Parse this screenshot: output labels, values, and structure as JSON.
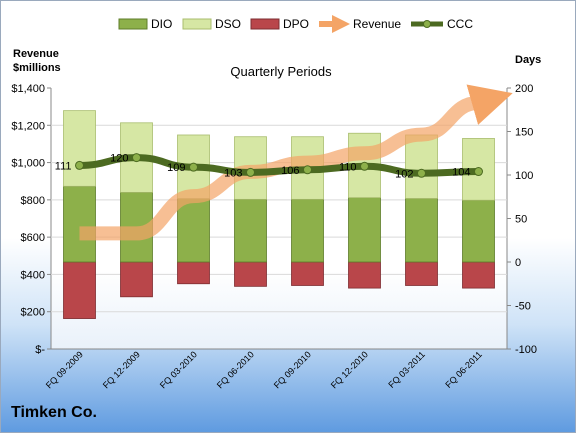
{
  "company": "Timken Co.",
  "chart_data": {
    "type": "bar",
    "title": "Quarterly Periods",
    "ylabel_left": [
      "Revenue",
      "$millions"
    ],
    "ylabel_right": "Days",
    "ylim_left": [
      0,
      1400
    ],
    "ylim_right": [
      -100,
      200
    ],
    "yticks_left": [
      "$1,400",
      "$1,200",
      "$1,000",
      "$800",
      "$600",
      "$400",
      "$200",
      "$-"
    ],
    "yticks_right": [
      "200",
      "150",
      "100",
      "50",
      "0",
      "-50",
      "-100"
    ],
    "categories": [
      "FQ 09-2009",
      "FQ 12-2009",
      "FQ 03-2010",
      "FQ 06-2010",
      "FQ 09-2010",
      "FQ 12-2010",
      "FQ 03-2011",
      "FQ 06-2011"
    ],
    "legend": [
      "DIO",
      "DSO",
      "DPO",
      "Revenue",
      "CCC"
    ],
    "legend_position": "top",
    "series": [
      {
        "name": "DIO",
        "axis": "right",
        "values": [
          87,
          80,
          73,
          72,
          72,
          74,
          73,
          71
        ]
      },
      {
        "name": "DSO",
        "axis": "right",
        "values": [
          87,
          80,
          73,
          72,
          72,
          74,
          73,
          71
        ]
      },
      {
        "name": "DPO",
        "axis": "right",
        "values": [
          -65,
          -40,
          -25,
          -28,
          -27,
          -30,
          -27,
          -30
        ]
      },
      {
        "name": "Revenue",
        "axis": "left",
        "values": [
          620,
          620,
          820,
          950,
          1000,
          1050,
          1150,
          1320
        ]
      },
      {
        "name": "CCC",
        "axis": "right",
        "values": [
          111,
          120,
          109,
          103,
          106,
          110,
          102,
          104
        ]
      }
    ],
    "ccc_labels": [
      "111",
      "120",
      "109",
      "103",
      "106",
      "110",
      "102",
      "104"
    ],
    "colors": {
      "DIO": "#8db04a",
      "DSO": "#d6e7a4",
      "DPO": "#b9464a",
      "Revenue": "#f4a466",
      "CCC": "#4c6a21"
    }
  }
}
